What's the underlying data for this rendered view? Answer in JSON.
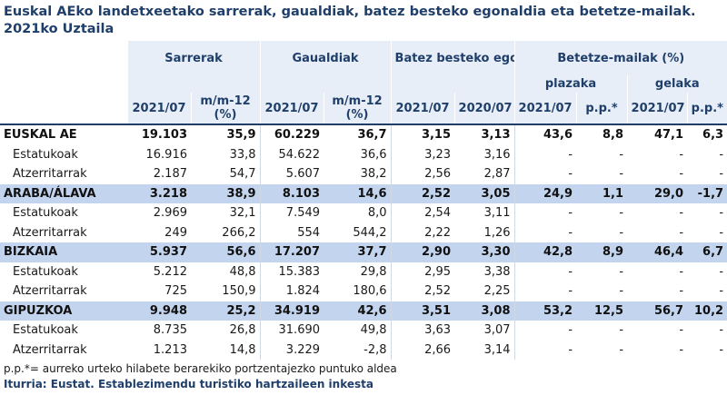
{
  "title": "Euskal AEko landetxeetako sarrerak, gaualdiak, batez besteko egonaldia eta betetze-mailak. 2021ko Uztaila",
  "headers": {
    "sarrerak": "Sarrerak",
    "gaualdiak": "Gaualdiak",
    "egonaldia": "Batez besteko egonaldia",
    "betetze": "Betetze-mailak (%)",
    "plazaka": "plazaka",
    "gelaka": "gelaka",
    "col1": "2021/07",
    "col2": "m/m-12 (%)",
    "col3": "2021/07",
    "col4": "m/m-12 (%)",
    "col5": "2021/07",
    "col6": "2020/07",
    "col7": "2021/07",
    "col8": "p.p.*",
    "col9": "2021/07",
    "col10": "p.p.*"
  },
  "rows": [
    {
      "label": "EUSKAL AE",
      "type": "first",
      "v": [
        "19.103",
        "35,9",
        "60.229",
        "36,7",
        "3,15",
        "3,13",
        "43,6",
        "8,8",
        "47,1",
        "6,3"
      ]
    },
    {
      "label": "Estatukoak",
      "type": "sub",
      "v": [
        "16.916",
        "33,8",
        "54.622",
        "36,6",
        "3,23",
        "3,16",
        "-",
        "-",
        "-",
        "-"
      ]
    },
    {
      "label": "Atzerritarrak",
      "type": "sub",
      "v": [
        "2.187",
        "54,7",
        "5.607",
        "38,2",
        "2,56",
        "2,87",
        "-",
        "-",
        "-",
        "-"
      ]
    },
    {
      "label": "ARABA/ÁLAVA",
      "type": "main",
      "v": [
        "3.218",
        "38,9",
        "8.103",
        "14,6",
        "2,52",
        "3,05",
        "24,9",
        "1,1",
        "29,0",
        "-1,7"
      ]
    },
    {
      "label": "Estatukoak",
      "type": "sub",
      "v": [
        "2.969",
        "32,1",
        "7.549",
        "8,0",
        "2,54",
        "3,11",
        "-",
        "-",
        "-",
        "-"
      ]
    },
    {
      "label": "Atzerritarrak",
      "type": "sub",
      "v": [
        "249",
        "266,2",
        "554",
        "544,2",
        "2,22",
        "1,26",
        "-",
        "-",
        "-",
        "-"
      ]
    },
    {
      "label": "BIZKAIA",
      "type": "main",
      "v": [
        "5.937",
        "56,6",
        "17.207",
        "37,7",
        "2,90",
        "3,30",
        "42,8",
        "8,9",
        "46,4",
        "6,7"
      ]
    },
    {
      "label": "Estatukoak",
      "type": "sub",
      "v": [
        "5.212",
        "48,8",
        "15.383",
        "29,8",
        "2,95",
        "3,38",
        "-",
        "-",
        "-",
        "-"
      ]
    },
    {
      "label": "Atzerritarrak",
      "type": "sub",
      "v": [
        "725",
        "150,9",
        "1.824",
        "180,6",
        "2,52",
        "2,25",
        "-",
        "-",
        "-",
        "-"
      ]
    },
    {
      "label": "GIPUZKOA",
      "type": "main",
      "v": [
        "9.948",
        "25,2",
        "34.919",
        "42,6",
        "3,51",
        "3,08",
        "53,2",
        "12,5",
        "56,7",
        "10,2"
      ]
    },
    {
      "label": "Estatukoak",
      "type": "sub",
      "v": [
        "8.735",
        "26,8",
        "31.690",
        "49,8",
        "3,63",
        "3,07",
        "-",
        "-",
        "-",
        "-"
      ]
    },
    {
      "label": "Atzerritarrak",
      "type": "sub",
      "v": [
        "1.213",
        "14,8",
        "3.229",
        "-2,8",
        "2,66",
        "3,14",
        "-",
        "-",
        "-",
        "-"
      ]
    }
  ],
  "footnote": "p.p.*= aurreko urteko hilabete berarekiko portzentajezko puntuko aldea",
  "source": "Iturria: Eustat. Establezimendu turistiko hartzaileen inkesta"
}
